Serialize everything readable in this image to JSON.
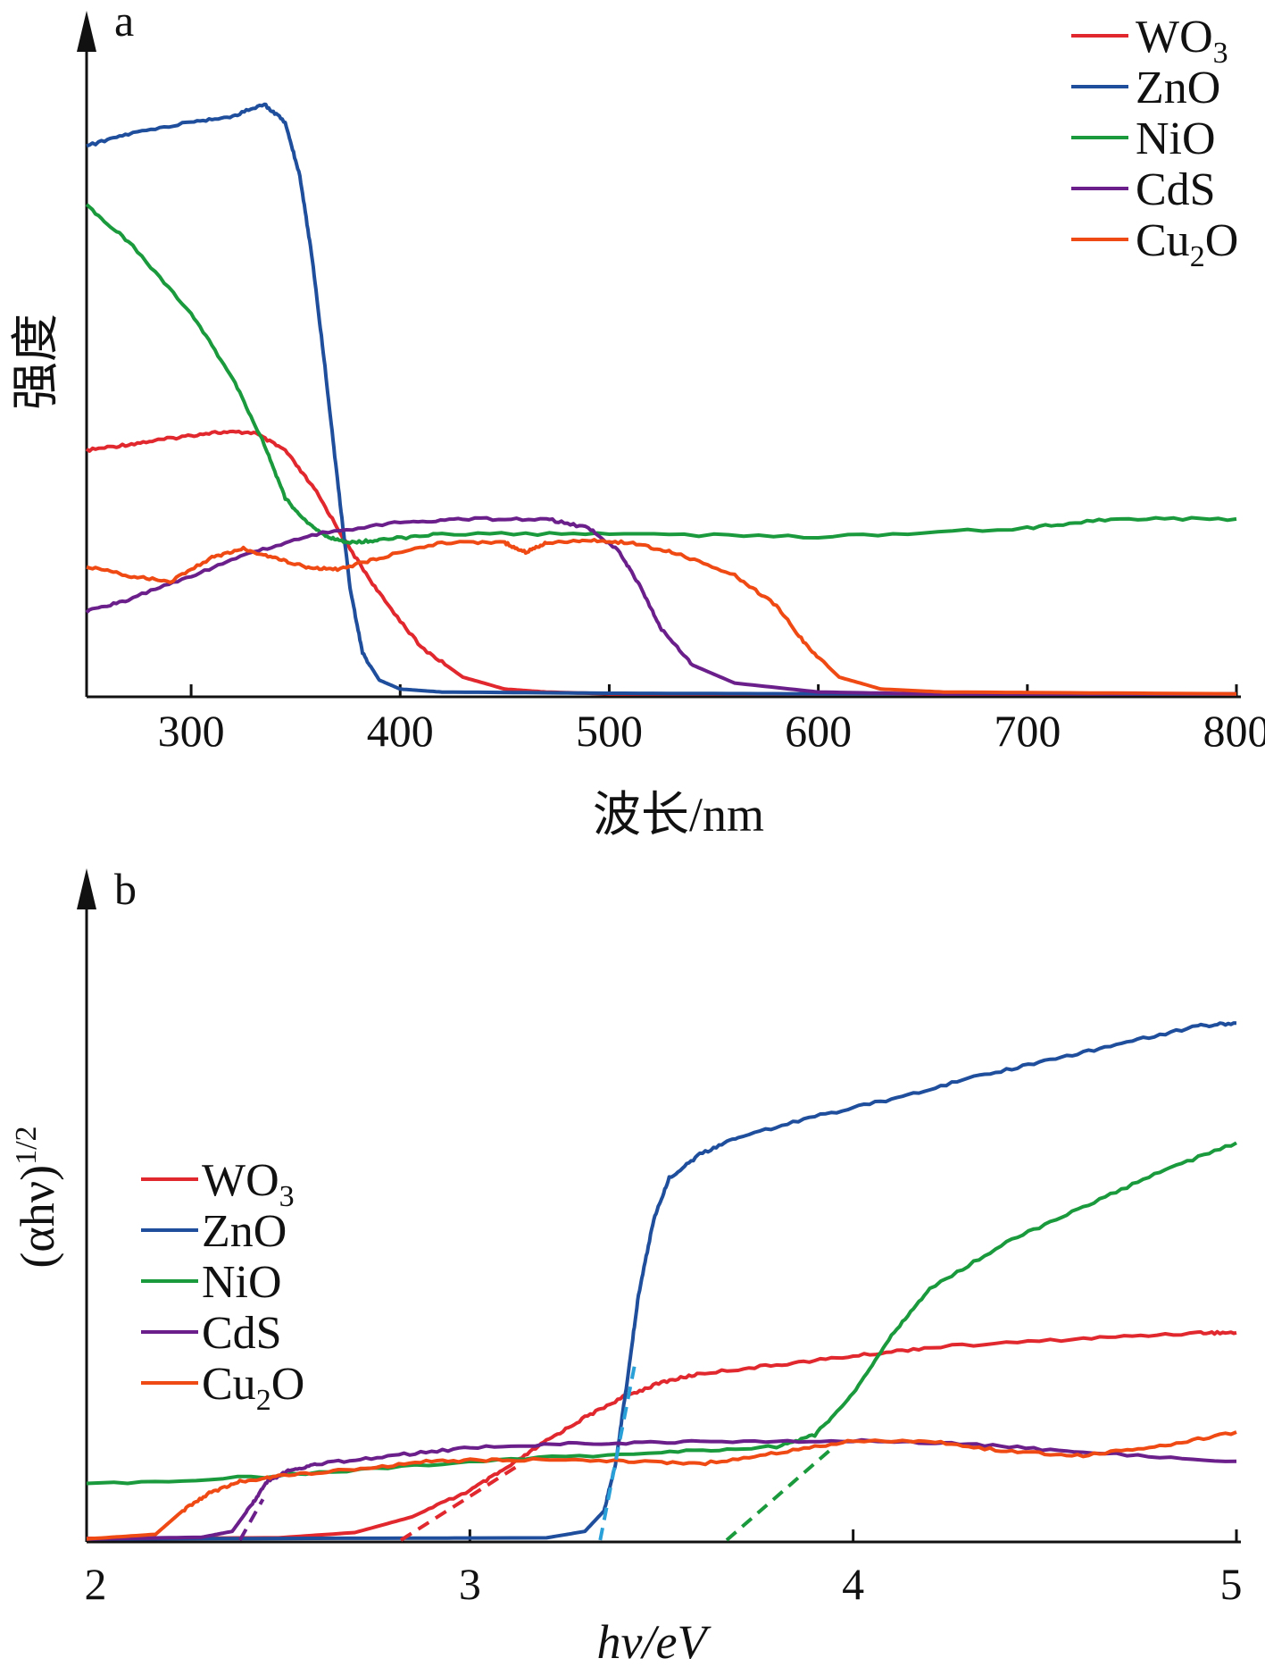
{
  "chart_data": [
    {
      "panel": "a",
      "type": "line",
      "xlabel": "波长/nm",
      "ylabel": "强度",
      "xlim": [
        250,
        800
      ],
      "ylim": [
        0,
        1
      ],
      "xticks": [
        300,
        400,
        500,
        600,
        700,
        800
      ],
      "grid": false,
      "legend_position": "top-right",
      "series": [
        {
          "name": "WO",
          "sub": "3",
          "color": "#e0282e",
          "x": [
            250,
            270,
            290,
            310,
            330,
            345,
            360,
            375,
            390,
            410,
            430,
            450,
            470,
            500,
            600,
            700,
            800
          ],
          "y": [
            0.41,
            0.42,
            0.43,
            0.44,
            0.44,
            0.41,
            0.34,
            0.25,
            0.17,
            0.08,
            0.03,
            0.01,
            0.005,
            0.002,
            0.002,
            0.002,
            0.002
          ]
        },
        {
          "name": "ZnO",
          "sub": "",
          "color": "#1f4e9c",
          "x": [
            250,
            270,
            300,
            320,
            335,
            345,
            352,
            358,
            364,
            370,
            376,
            382,
            390,
            400,
            420,
            500,
            600,
            700,
            800
          ],
          "y": [
            0.92,
            0.94,
            0.96,
            0.97,
            0.99,
            0.96,
            0.87,
            0.73,
            0.55,
            0.36,
            0.18,
            0.07,
            0.025,
            0.01,
            0.005,
            0.003,
            0.002,
            0.002,
            0.002
          ]
        },
        {
          "name": "NiO",
          "sub": "",
          "color": "#1a9a3c",
          "x": [
            250,
            270,
            300,
            320,
            335,
            345,
            355,
            365,
            375,
            390,
            420,
            500,
            600,
            700,
            740,
            800
          ],
          "y": [
            0.82,
            0.76,
            0.64,
            0.53,
            0.42,
            0.33,
            0.29,
            0.265,
            0.255,
            0.26,
            0.27,
            0.27,
            0.265,
            0.28,
            0.295,
            0.295
          ]
        },
        {
          "name": "CdS",
          "sub": "",
          "color": "#6a1f8a",
          "x": [
            250,
            270,
            300,
            330,
            360,
            400,
            430,
            470,
            490,
            505,
            515,
            525,
            540,
            560,
            600,
            650,
            800
          ],
          "y": [
            0.14,
            0.16,
            0.2,
            0.24,
            0.27,
            0.29,
            0.295,
            0.295,
            0.28,
            0.24,
            0.18,
            0.11,
            0.05,
            0.02,
            0.005,
            0.002,
            0.002
          ]
        },
        {
          "name": "Cu",
          "sub": "2",
          "color": "#f04a14",
          "x": [
            250,
            270,
            290,
            310,
            325,
            340,
            355,
            370,
            390,
            420,
            450,
            460,
            470,
            490,
            510,
            530,
            560,
            580,
            595,
            610,
            630,
            660,
            800
          ],
          "y": [
            0.215,
            0.2,
            0.19,
            0.23,
            0.245,
            0.23,
            0.215,
            0.21,
            0.23,
            0.255,
            0.255,
            0.24,
            0.255,
            0.26,
            0.255,
            0.24,
            0.2,
            0.15,
            0.08,
            0.03,
            0.01,
            0.005,
            0.002
          ]
        }
      ]
    },
    {
      "panel": "b",
      "type": "line",
      "xlabel": "hν/eV",
      "ylabel": "(αhν)",
      "ylabel_sup": "1/2",
      "xlim": [
        2,
        5
      ],
      "ylim": [
        0,
        1
      ],
      "xticks": [
        2,
        3,
        4,
        5
      ],
      "grid": false,
      "legend_position": "middle-left",
      "series": [
        {
          "name": "WO",
          "sub": "3",
          "color": "#e0282e",
          "x": [
            2.0,
            2.5,
            2.7,
            2.85,
            3.0,
            3.1,
            3.2,
            3.3,
            3.4,
            3.5,
            3.6,
            3.8,
            4.0,
            4.2,
            4.6,
            4.9,
            5.0
          ],
          "y": [
            0.003,
            0.004,
            0.013,
            0.04,
            0.085,
            0.125,
            0.17,
            0.21,
            0.245,
            0.27,
            0.285,
            0.3,
            0.315,
            0.33,
            0.345,
            0.355,
            0.355
          ]
        },
        {
          "name": "ZnO",
          "sub": "",
          "color": "#1f4e9c",
          "x": [
            2.0,
            3.2,
            3.3,
            3.35,
            3.38,
            3.41,
            3.44,
            3.48,
            3.52,
            3.6,
            3.7,
            3.9,
            4.1,
            4.3,
            4.5,
            4.7,
            4.9,
            5.0
          ],
          "y": [
            0.002,
            0.004,
            0.015,
            0.05,
            0.13,
            0.27,
            0.42,
            0.55,
            0.62,
            0.66,
            0.69,
            0.725,
            0.755,
            0.79,
            0.82,
            0.85,
            0.88,
            0.885
          ]
        },
        {
          "name": "NiO",
          "sub": "",
          "color": "#1a9a3c",
          "x": [
            2.0,
            2.5,
            3.0,
            3.5,
            3.8,
            3.9,
            4.0,
            4.1,
            4.2,
            4.4,
            4.6,
            4.8,
            5.0
          ],
          "y": [
            0.095,
            0.11,
            0.135,
            0.15,
            0.16,
            0.18,
            0.25,
            0.35,
            0.43,
            0.51,
            0.57,
            0.63,
            0.68
          ]
        },
        {
          "name": "CdS",
          "sub": "",
          "color": "#6a1f8a",
          "x": [
            2.0,
            2.3,
            2.38,
            2.43,
            2.47,
            2.53,
            2.6,
            2.8,
            3.0,
            3.3,
            3.6,
            4.0,
            4.3,
            4.6,
            5.0
          ],
          "y": [
            0.002,
            0.005,
            0.015,
            0.06,
            0.1,
            0.12,
            0.13,
            0.145,
            0.158,
            0.166,
            0.168,
            0.17,
            0.165,
            0.15,
            0.135
          ]
        },
        {
          "name": "Cu",
          "sub": "2",
          "color": "#f04a14",
          "x": [
            2.0,
            2.18,
            2.25,
            2.32,
            2.4,
            2.5,
            2.7,
            2.9,
            3.1,
            3.4,
            3.6,
            3.8,
            4.0,
            4.2,
            4.4,
            4.6,
            4.8,
            5.0
          ],
          "y": [
            0.002,
            0.01,
            0.05,
            0.08,
            0.1,
            0.11,
            0.122,
            0.135,
            0.138,
            0.135,
            0.13,
            0.15,
            0.17,
            0.17,
            0.152,
            0.145,
            0.16,
            0.185
          ]
        }
      ],
      "tangents": [
        {
          "color": "#e0282e",
          "x": [
            2.82,
            3.12
          ],
          "y": [
            0.0,
            0.125
          ]
        },
        {
          "color": "#2aa0d8",
          "x": [
            3.34,
            3.43
          ],
          "y": [
            0.0,
            0.3
          ]
        },
        {
          "color": "#1a9a3c",
          "x": [
            3.67,
            3.95
          ],
          "y": [
            0.0,
            0.16
          ]
        },
        {
          "color": "#6a1f8a",
          "x": [
            2.4,
            2.46
          ],
          "y": [
            0.0,
            0.07
          ]
        }
      ]
    }
  ]
}
